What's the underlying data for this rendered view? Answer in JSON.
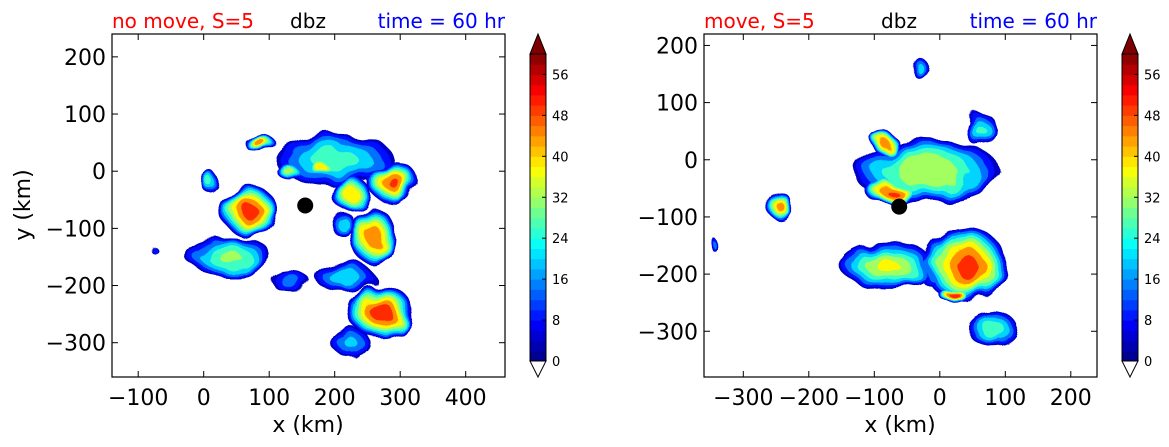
{
  "colors": {
    "left_title": "#ff0000",
    "center_title": "#000000",
    "right_title": "#0000ff"
  },
  "chart_data": [
    {
      "type": "heatmap",
      "subtype": "filled-contour",
      "title_left": "no move, S=5",
      "title_center": "dbz",
      "title_right": "time = 60 hr",
      "xlabel": "x (km)",
      "ylabel": "y (km)",
      "xlim": [
        -140,
        460
      ],
      "ylim": [
        -360,
        240
      ],
      "xticks": [
        -100,
        0,
        100,
        200,
        300,
        400
      ],
      "yticks": [
        200,
        100,
        0,
        -100,
        -200,
        -300
      ],
      "xtick_labels": [
        "−100",
        "0",
        "100",
        "200",
        "300",
        "400"
      ],
      "ytick_labels": [
        "200",
        "100",
        "0",
        "−100",
        "−200",
        "−300"
      ],
      "center_marker": {
        "x": 155,
        "y": -60
      },
      "colorbar": {
        "min": 0,
        "max": 60,
        "step": 2,
        "ticks": [
          "0",
          "8",
          "16",
          "24",
          "32",
          "40",
          "48",
          "56"
        ],
        "extend": "both",
        "colormap": "jet"
      },
      "cells": [
        {
          "x": 70,
          "y": -70,
          "rx": 40,
          "ry": 45,
          "peak": 50
        },
        {
          "x": 85,
          "y": 50,
          "rx": 22,
          "ry": 18,
          "peak": 46
        },
        {
          "x": 10,
          "y": -20,
          "rx": 14,
          "ry": 18,
          "peak": 26
        },
        {
          "x": 40,
          "y": -150,
          "rx": 65,
          "ry": 32,
          "peak": 30
        },
        {
          "x": 130,
          "y": 0,
          "rx": 18,
          "ry": 14,
          "peak": 34
        },
        {
          "x": 200,
          "y": 20,
          "rx": 90,
          "ry": 45,
          "peak": 26
        },
        {
          "x": 290,
          "y": -20,
          "rx": 38,
          "ry": 35,
          "peak": 48
        },
        {
          "x": 225,
          "y": -40,
          "rx": 30,
          "ry": 28,
          "peak": 40
        },
        {
          "x": 180,
          "y": 5,
          "rx": 22,
          "ry": 12,
          "peak": 40
        },
        {
          "x": 260,
          "y": -115,
          "rx": 32,
          "ry": 50,
          "peak": 46
        },
        {
          "x": 215,
          "y": -95,
          "rx": 18,
          "ry": 22,
          "peak": 22
        },
        {
          "x": 270,
          "y": -245,
          "rx": 48,
          "ry": 45,
          "peak": 52
        },
        {
          "x": 215,
          "y": -185,
          "rx": 45,
          "ry": 25,
          "peak": 22
        },
        {
          "x": 135,
          "y": -195,
          "rx": 30,
          "ry": 18,
          "peak": 14
        },
        {
          "x": 225,
          "y": -300,
          "rx": 30,
          "ry": 25,
          "peak": 18
        },
        {
          "x": -78,
          "y": -135,
          "rx": 4,
          "ry": 8,
          "peak": 10
        }
      ]
    },
    {
      "type": "heatmap",
      "subtype": "filled-contour",
      "title_left": "move, S=5",
      "title_center": "dbz",
      "title_right": "time = 60 hr",
      "xlabel": "x (km)",
      "ylabel": "",
      "xlim": [
        -360,
        240
      ],
      "ylim": [
        -380,
        220
      ],
      "xticks": [
        -300,
        -200,
        -100,
        0,
        100,
        200
      ],
      "yticks": [
        200,
        100,
        0,
        -100,
        -200,
        -300
      ],
      "xtick_labels": [
        "−300",
        "−200",
        "−100",
        "0",
        "100",
        "200"
      ],
      "ytick_labels": [
        "200",
        "100",
        "0",
        "−100",
        "−200",
        "−300"
      ],
      "center_marker": {
        "x": -62,
        "y": -82
      },
      "colorbar": {
        "min": 0,
        "max": 60,
        "step": 2,
        "ticks": [
          "0",
          "8",
          "16",
          "24",
          "32",
          "40",
          "48",
          "56"
        ],
        "extend": "both",
        "colormap": "jet"
      },
      "cells": [
        {
          "x": -20,
          "y": -20,
          "rx": 110,
          "ry": 55,
          "peak": 34
        },
        {
          "x": -85,
          "y": 30,
          "rx": 20,
          "ry": 18,
          "peak": 46
        },
        {
          "x": -75,
          "y": -55,
          "rx": 38,
          "ry": 22,
          "peak": 48
        },
        {
          "x": 10,
          "y": -25,
          "rx": 60,
          "ry": 40,
          "peak": 32
        },
        {
          "x": 60,
          "y": 55,
          "rx": 22,
          "ry": 30,
          "peak": 24
        },
        {
          "x": 60,
          "y": 70,
          "rx": 20,
          "ry": 16,
          "peak": 14
        },
        {
          "x": -30,
          "y": 160,
          "rx": 16,
          "ry": 14,
          "peak": 20
        },
        {
          "x": -245,
          "y": -80,
          "rx": 18,
          "ry": 25,
          "peak": 44
        },
        {
          "x": -80,
          "y": -185,
          "rx": 70,
          "ry": 40,
          "peak": 36
        },
        {
          "x": 40,
          "y": -185,
          "rx": 60,
          "ry": 65,
          "peak": 50
        },
        {
          "x": 25,
          "y": -240,
          "rx": 22,
          "ry": 14,
          "peak": 52
        },
        {
          "x": 80,
          "y": -295,
          "rx": 38,
          "ry": 30,
          "peak": 28
        },
        {
          "x": -345,
          "y": -148,
          "rx": 7,
          "ry": 10,
          "peak": 14
        },
        {
          "x": -5,
          "y": -195,
          "rx": 28,
          "ry": 30,
          "peak": 16
        }
      ]
    }
  ]
}
